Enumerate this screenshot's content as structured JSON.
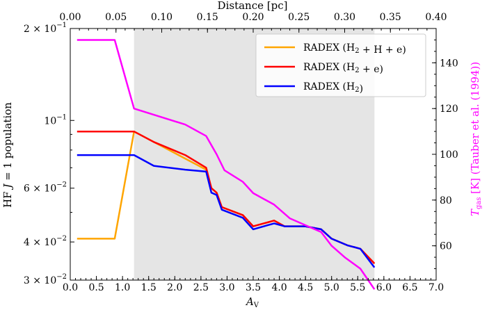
{
  "chart_data": {
    "type": "line",
    "title": "",
    "xlabel": "A_V",
    "xlim": [
      0.0,
      7.0
    ],
    "xticks": [
      "0.0",
      "0.5",
      "1.0",
      "1.5",
      "2.0",
      "2.5",
      "3.0",
      "3.5",
      "4.0",
      "4.5",
      "5.0",
      "5.5",
      "6.0",
      "6.5",
      "7.0"
    ],
    "top_xlabel": "Distance [pc]",
    "top_xlim": [
      0.0,
      0.4
    ],
    "top_xticks": [
      "0.00",
      "0.05",
      "0.10",
      "0.15",
      "0.20",
      "0.25",
      "0.30",
      "0.35",
      "0.40"
    ],
    "ylabel": "HF J = 1 population",
    "ylim": [
      0.03,
      0.2
    ],
    "yscale": "log",
    "yticks": [
      {
        "value": 0.2,
        "mant": "2 × 10",
        "exp": "−1"
      },
      {
        "value": 0.1,
        "mant": "10",
        "exp": "−1"
      },
      {
        "value": 0.06,
        "mant": "6 × 10",
        "exp": "−2"
      },
      {
        "value": 0.04,
        "mant": "4 × 10",
        "exp": "−2"
      },
      {
        "value": 0.03,
        "mant": "3 × 10",
        "exp": "−2"
      }
    ],
    "y2label": "T_gas [K] (Tauber et al. (1994))",
    "y2lim": [
      45,
      155
    ],
    "y2ticks": [
      "60",
      "80",
      "100",
      "120",
      "140"
    ],
    "shaded_region": [
      1.22,
      5.82
    ],
    "legend_position": "top-right",
    "grid": false,
    "series": [
      {
        "name": "RADEX (H2 + H + e)",
        "color": "#ffa500",
        "axis": "left",
        "x": [
          0.13,
          0.85,
          1.22,
          2.6,
          2.7,
          2.8,
          2.9,
          3.3,
          3.5,
          3.9,
          4.1,
          4.5,
          4.8,
          5.0,
          5.3,
          5.55,
          5.82
        ],
        "y": [
          0.041,
          0.041,
          0.092,
          0.069,
          0.06,
          0.058,
          0.052,
          0.049,
          0.045,
          0.047,
          0.045,
          0.045,
          0.044,
          0.041,
          0.039,
          0.038,
          0.034
        ]
      },
      {
        "name": "RADEX (H2 + e)",
        "color": "#ff0000",
        "axis": "left",
        "x": [
          0.13,
          0.5,
          1.0,
          1.22,
          1.6,
          2.2,
          2.6,
          2.7,
          2.8,
          2.9,
          3.3,
          3.5,
          3.9,
          4.1,
          4.5,
          4.8,
          5.0,
          5.3,
          5.55,
          5.82
        ],
        "y": [
          0.092,
          0.092,
          0.092,
          0.092,
          0.085,
          0.077,
          0.07,
          0.06,
          0.058,
          0.052,
          0.049,
          0.045,
          0.047,
          0.045,
          0.045,
          0.044,
          0.041,
          0.039,
          0.038,
          0.034
        ]
      },
      {
        "name": "RADEX (H2)",
        "color": "#0000ff",
        "axis": "left",
        "x": [
          0.13,
          0.5,
          1.0,
          1.22,
          1.6,
          2.2,
          2.6,
          2.7,
          2.8,
          2.9,
          3.3,
          3.5,
          3.9,
          4.1,
          4.5,
          4.8,
          5.0,
          5.3,
          5.55,
          5.82
        ],
        "y": [
          0.077,
          0.077,
          0.077,
          0.077,
          0.071,
          0.069,
          0.068,
          0.058,
          0.057,
          0.051,
          0.048,
          0.044,
          0.046,
          0.045,
          0.045,
          0.044,
          0.041,
          0.039,
          0.038,
          0.033
        ]
      },
      {
        "name": "",
        "color": "#ff00ff",
        "axis": "right",
        "x": [
          0.13,
          0.85,
          1.22,
          2.2,
          2.6,
          2.8,
          2.95,
          3.3,
          3.5,
          3.9,
          4.2,
          4.5,
          4.8,
          5.0,
          5.25,
          5.55,
          5.82
        ],
        "y": [
          150,
          150,
          120,
          113,
          108,
          100,
          93,
          88,
          83,
          78,
          72,
          69,
          66,
          60,
          55,
          50,
          41
        ]
      }
    ]
  }
}
